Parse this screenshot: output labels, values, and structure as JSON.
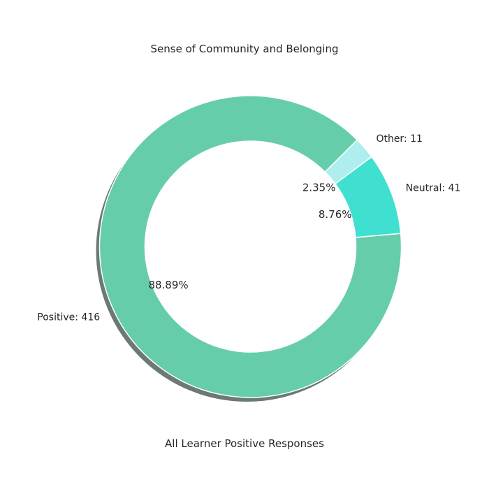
{
  "chart_data": {
    "type": "pie",
    "title": "Sense of Community and Belonging",
    "xlabel": "All Learner Positive Responses",
    "donut": true,
    "shadow": true,
    "slices": [
      {
        "label": "Positive: 416",
        "value": 416,
        "percent_label": "88.89%",
        "color": "#66cdaa"
      },
      {
        "label": "Neutral: 41",
        "value": 41,
        "percent_label": "8.76%",
        "color": "#40e0d0"
      },
      {
        "label": "Other: 11",
        "value": 11,
        "percent_label": "2.35%",
        "color": "#afeeee"
      }
    ]
  }
}
